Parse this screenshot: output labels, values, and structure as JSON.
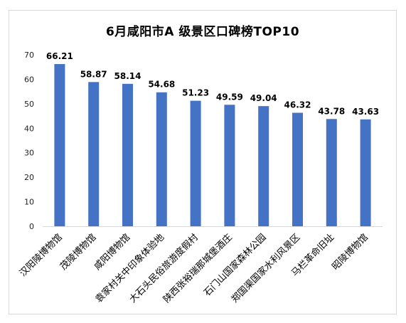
{
  "chart_data": {
    "type": "bar",
    "title": "6月咸阳市A 级景区口碑榜TOP10",
    "xlabel": "",
    "ylabel": "",
    "ylim": [
      0,
      70
    ],
    "yticks": [
      0,
      10,
      20,
      30,
      40,
      50,
      60,
      70
    ],
    "grid": false,
    "bar_color": "#4472C4",
    "categories": [
      "汉阳陵博物馆",
      "茂陵博物馆",
      "咸阳博物馆",
      "袁家村关中印象体验地",
      "大石头民俗旅游度假村",
      "陕西张裕瑞那城堡酒庄",
      "石门山国家森林公园",
      "郑国渠国家水利风景区",
      "马栏革命旧址",
      "昭陵博物馆"
    ],
    "values": [
      66.21,
      58.87,
      58.14,
      54.68,
      51.23,
      49.59,
      49.04,
      46.32,
      43.78,
      43.63
    ],
    "value_labels": [
      "66.21",
      "58.87",
      "58.14",
      "54.68",
      "51.23",
      "49.59",
      "49.04",
      "46.32",
      "43.78",
      "43.63"
    ]
  }
}
